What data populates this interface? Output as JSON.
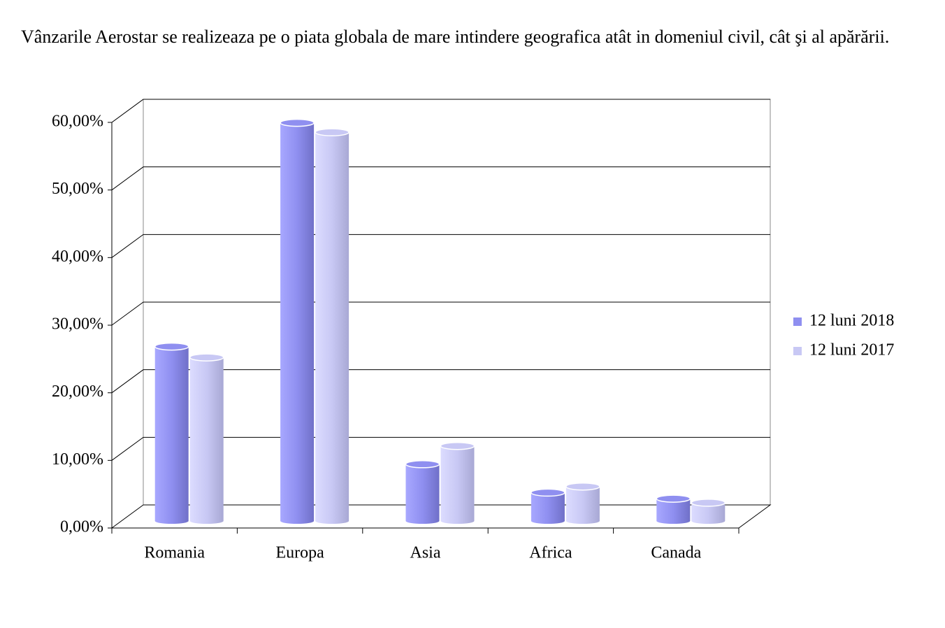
{
  "intro": "Vânzarile Aerostar se realizeaza pe o piata globala de mare intindere geografica atât in domeniul civil, cât şi al apărării.",
  "chart_data": {
    "type": "bar3d",
    "categories": [
      "Romania",
      "Europa",
      "Asia",
      "Africa",
      "Canada"
    ],
    "series": [
      {
        "name": "12 luni 2018",
        "color": "#8f8ff0",
        "values": [
          25.8,
          58.9,
          8.4,
          4.2,
          3.3
        ]
      },
      {
        "name": "12 luni 2017",
        "color": "#c8c8f4",
        "values": [
          24.2,
          57.5,
          11.1,
          5.1,
          2.7
        ]
      }
    ],
    "ylim": [
      0,
      60
    ],
    "yticks": [
      {
        "value": 0,
        "label": "0,00%"
      },
      {
        "value": 10,
        "label": "10,00%"
      },
      {
        "value": 20,
        "label": "20,00%"
      },
      {
        "value": 30,
        "label": "30,00%"
      },
      {
        "value": 40,
        "label": "40,00%"
      },
      {
        "value": 50,
        "label": "50,00%"
      },
      {
        "value": 60,
        "label": "60,00%"
      }
    ],
    "grid": true,
    "legend": "right"
  }
}
